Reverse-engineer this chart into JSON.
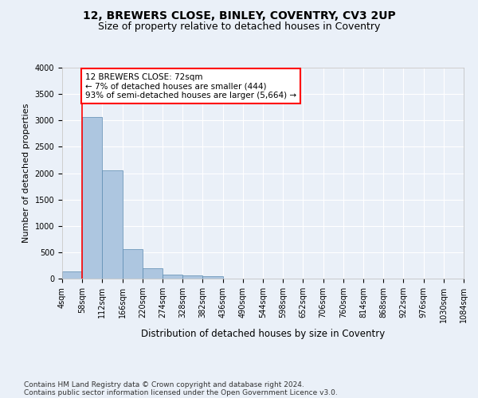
{
  "title": "12, BREWERS CLOSE, BINLEY, COVENTRY, CV3 2UP",
  "subtitle": "Size of property relative to detached houses in Coventry",
  "xlabel": "Distribution of detached houses by size in Coventry",
  "ylabel": "Number of detached properties",
  "bin_labels": [
    "4sqm",
    "58sqm",
    "112sqm",
    "166sqm",
    "220sqm",
    "274sqm",
    "328sqm",
    "382sqm",
    "436sqm",
    "490sqm",
    "544sqm",
    "598sqm",
    "652sqm",
    "706sqm",
    "760sqm",
    "814sqm",
    "868sqm",
    "922sqm",
    "976sqm",
    "1030sqm",
    "1084sqm"
  ],
  "bar_values": [
    140,
    3060,
    2060,
    560,
    190,
    80,
    55,
    40,
    0,
    0,
    0,
    0,
    0,
    0,
    0,
    0,
    0,
    0,
    0,
    0
  ],
  "bar_color": "#adc6e0",
  "bar_edge_color": "#5a8ab0",
  "property_line_x": 1,
  "annotation_text": "12 BREWERS CLOSE: 72sqm\n← 7% of detached houses are smaller (444)\n93% of semi-detached houses are larger (5,664) →",
  "annotation_box_color": "white",
  "annotation_box_edge_color": "red",
  "vline_color": "red",
  "ylim": [
    0,
    4000
  ],
  "yticks": [
    0,
    500,
    1000,
    1500,
    2000,
    2500,
    3000,
    3500,
    4000
  ],
  "background_color": "#eaf0f8",
  "grid_color": "white",
  "footer_line1": "Contains HM Land Registry data © Crown copyright and database right 2024.",
  "footer_line2": "Contains public sector information licensed under the Open Government Licence v3.0.",
  "title_fontsize": 10,
  "subtitle_fontsize": 9,
  "xlabel_fontsize": 8.5,
  "ylabel_fontsize": 8,
  "tick_fontsize": 7,
  "annotation_fontsize": 7.5,
  "footer_fontsize": 6.5
}
